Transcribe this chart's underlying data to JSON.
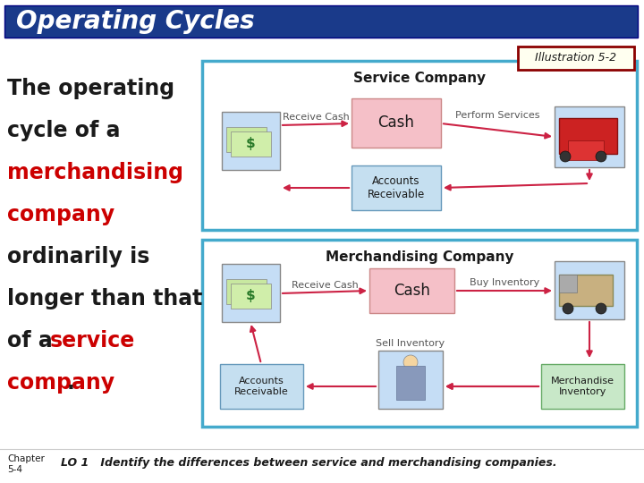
{
  "title": "Operating Cycles",
  "title_bg": "#1a3a8a",
  "title_text_color": "#ffffff",
  "illustration_label": "Illustration 5-2",
  "illustration_border": "#8b0000",
  "illustration_bg": "#fffff0",
  "body_bg": "#ffffff",
  "left_text_color": "#1a1a1a",
  "red_text_color": "#cc0000",
  "text_font_size": 17,
  "service_box_border": "#44aacc",
  "service_box_bg": "#ffffff",
  "merch_box_border": "#44aacc",
  "merch_box_bg": "#ffffff",
  "service_title": "Service Company",
  "merch_title": "Merchandising Company",
  "cash_box_color": "#f5c0c8",
  "cash_box_color_s": "#f5c0c8",
  "ar_box_color": "#c5dff0",
  "merch_inv_box_color": "#c8e8c8",
  "icon_bg": "#c5ddf5",
  "arrow_color": "#cc2244",
  "label_color": "#555555",
  "footer_chapter": "Chapter\n5-4",
  "footer_text": "LO 1   Identify the differences between service and merchandising companies."
}
